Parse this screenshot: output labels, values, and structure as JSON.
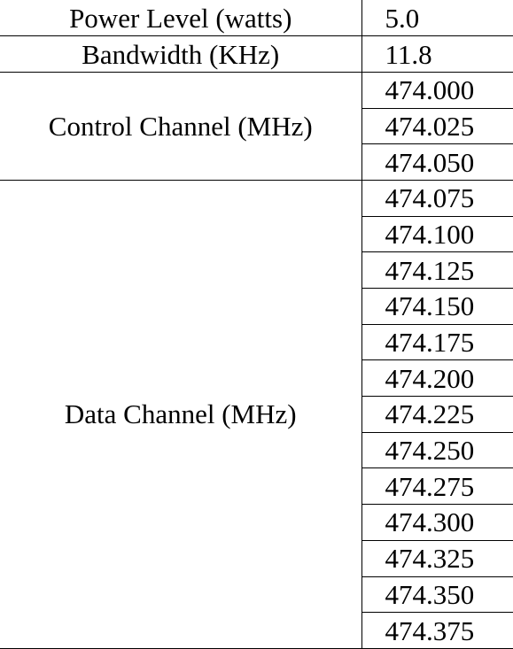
{
  "table": {
    "power_label": "Power Level (watts)",
    "power_value": "5.0",
    "bandwidth_label": "Bandwidth (KHz)",
    "bandwidth_value": "11.8",
    "control_label": "Control Channel (MHz)",
    "control_values": [
      "474.000",
      "474.025",
      "474.050"
    ],
    "data_label": "Data Channel (MHz)",
    "data_values": [
      "474.075",
      "474.100",
      "474.125",
      "474.150",
      "474.175",
      "474.200",
      "474.225",
      "474.250",
      "474.275",
      "474.300",
      "474.325",
      "474.350",
      "474.375"
    ]
  }
}
